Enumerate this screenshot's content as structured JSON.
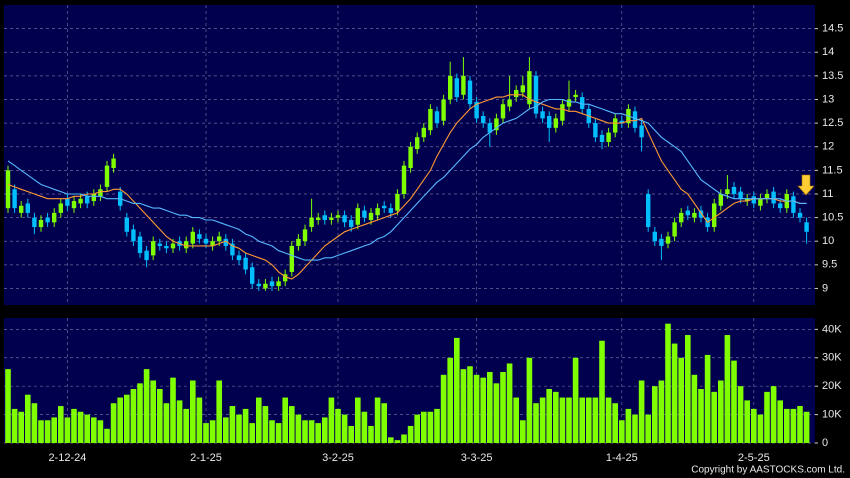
{
  "chart_data": [
    {
      "type": "candlestick",
      "categories": [
        null,
        null,
        null,
        null,
        null,
        null,
        null,
        null,
        null,
        "2-12-24",
        null,
        null,
        null,
        null,
        null,
        null,
        null,
        null,
        null,
        null,
        null,
        null,
        null,
        null,
        null,
        null,
        null,
        null,
        null,
        null,
        "2-1-25",
        null,
        null,
        null,
        null,
        null,
        null,
        null,
        null,
        null,
        null,
        null,
        null,
        null,
        null,
        null,
        null,
        null,
        null,
        null,
        "3-2-25",
        null,
        null,
        null,
        null,
        null,
        null,
        null,
        null,
        null,
        null,
        null,
        null,
        null,
        null,
        null,
        null,
        null,
        null,
        null,
        null,
        "3-3-25",
        null,
        null,
        null,
        null,
        null,
        null,
        null,
        null,
        null,
        null,
        null,
        null,
        null,
        null,
        null,
        null,
        null,
        null,
        null,
        null,
        null,
        "1-4-25",
        null,
        null,
        null,
        null,
        null,
        null,
        null,
        null,
        null,
        null,
        null,
        null,
        null,
        null,
        null,
        null,
        null,
        null,
        null,
        "2-5-25",
        null,
        null,
        null,
        null,
        null,
        null,
        null,
        null
      ],
      "open": [
        10.7,
        11.1,
        10.6,
        10.8,
        10.5,
        10.3,
        10.5,
        10.4,
        10.6,
        10.9,
        10.7,
        10.8,
        10.95,
        10.85,
        10.95,
        11.15,
        11.55,
        11.05,
        10.5,
        10.25,
        10.1,
        9.8,
        9.7,
        9.95,
        9.9,
        9.85,
        10.0,
        9.85,
        9.95,
        10.15,
        10.05,
        9.9,
        10.0,
        10.05,
        9.95,
        9.7,
        9.65,
        9.45,
        9.1,
        9.0,
        9.15,
        9.05,
        9.15,
        9.35,
        9.9,
        10.0,
        10.3,
        10.45,
        10.55,
        10.45,
        10.5,
        10.55,
        10.45,
        10.35,
        10.65,
        10.45,
        10.55,
        10.75,
        10.7,
        10.65,
        11.0,
        11.55,
        11.95,
        12.2,
        12.35,
        12.75,
        12.55,
        13.0,
        13.45,
        13.1,
        13.4,
        12.95,
        12.65,
        12.5,
        12.35,
        12.6,
        12.85,
        13.05,
        13.15,
        12.9,
        13.5,
        12.75,
        12.65,
        12.4,
        12.55,
        12.85,
        13.05,
        13.05,
        12.8,
        12.5,
        12.25,
        12.1,
        12.3,
        12.55,
        12.5,
        12.75,
        12.45,
        11.0,
        10.2,
        10.05,
        9.95,
        10.1,
        10.4,
        10.65,
        10.5,
        10.65,
        10.5,
        10.3,
        10.75,
        11.0,
        11.15,
        11.05,
        10.85,
        10.95,
        10.75,
        10.9,
        11.05,
        10.8,
        10.7,
        10.95,
        10.6,
        10.4
      ],
      "high": [
        11.6,
        11.2,
        10.85,
        10.9,
        10.6,
        10.55,
        10.6,
        10.7,
        10.9,
        11.0,
        10.95,
        11.0,
        11.05,
        11.1,
        11.2,
        11.7,
        11.85,
        11.15,
        10.6,
        10.35,
        10.2,
        9.9,
        10.1,
        10.05,
        10.0,
        10.05,
        10.1,
        10.1,
        10.3,
        10.25,
        10.15,
        10.1,
        10.2,
        10.15,
        10.05,
        9.8,
        9.75,
        9.55,
        9.2,
        9.2,
        9.25,
        9.25,
        9.4,
        10.0,
        10.15,
        10.35,
        10.9,
        10.6,
        10.65,
        10.6,
        10.65,
        10.65,
        10.55,
        10.8,
        10.75,
        10.7,
        10.8,
        10.85,
        10.8,
        11.1,
        11.7,
        12.1,
        12.3,
        12.5,
        12.9,
        12.85,
        13.1,
        13.8,
        13.55,
        13.9,
        13.5,
        13.05,
        12.75,
        12.6,
        12.7,
        13.0,
        13.5,
        13.3,
        13.5,
        13.9,
        13.6,
        12.85,
        12.75,
        12.7,
        13.0,
        13.4,
        13.2,
        13.15,
        12.9,
        12.6,
        12.35,
        12.4,
        12.7,
        12.65,
        12.9,
        12.85,
        12.55,
        11.1,
        10.3,
        10.15,
        10.2,
        10.5,
        10.7,
        10.75,
        10.7,
        10.75,
        10.6,
        10.9,
        11.1,
        11.4,
        11.25,
        11.15,
        11.0,
        11.05,
        11.0,
        11.1,
        11.15,
        10.9,
        11.1,
        11.05,
        10.7,
        10.5
      ],
      "low": [
        10.6,
        10.6,
        10.5,
        10.5,
        10.15,
        10.2,
        10.3,
        10.3,
        10.5,
        10.65,
        10.6,
        10.7,
        10.7,
        10.75,
        10.85,
        11.05,
        11.45,
        10.65,
        10.1,
        9.9,
        9.65,
        9.45,
        9.6,
        9.8,
        9.75,
        9.75,
        9.8,
        9.75,
        9.85,
        9.95,
        9.85,
        9.8,
        9.9,
        9.8,
        9.6,
        9.5,
        9.3,
        9.0,
        8.95,
        8.95,
        8.95,
        8.95,
        9.05,
        9.25,
        9.8,
        9.9,
        10.2,
        10.35,
        10.35,
        10.35,
        10.4,
        10.3,
        10.2,
        10.25,
        10.4,
        10.35,
        10.45,
        10.6,
        10.5,
        10.55,
        10.9,
        11.45,
        11.85,
        12.1,
        12.25,
        12.4,
        12.45,
        12.9,
        12.95,
        13.0,
        12.8,
        12.5,
        12.4,
        12.0,
        12.25,
        12.5,
        12.75,
        12.95,
        13.05,
        12.8,
        12.6,
        12.5,
        12.1,
        12.3,
        12.45,
        12.75,
        12.95,
        12.7,
        12.4,
        12.1,
        11.95,
        12.0,
        12.2,
        12.4,
        12.4,
        12.3,
        11.9,
        10.2,
        9.9,
        9.6,
        9.85,
        10.0,
        10.3,
        10.45,
        10.4,
        10.4,
        10.2,
        10.2,
        10.65,
        10.9,
        10.9,
        10.8,
        10.75,
        10.7,
        10.65,
        10.8,
        10.7,
        10.6,
        10.6,
        10.5,
        10.4,
        9.95
      ],
      "close": [
        11.5,
        10.7,
        10.75,
        10.6,
        10.3,
        10.45,
        10.4,
        10.6,
        10.8,
        10.75,
        10.85,
        10.9,
        10.8,
        11.0,
        11.1,
        11.6,
        11.75,
        10.75,
        10.2,
        10.0,
        9.75,
        9.6,
        10.0,
        9.9,
        9.85,
        9.95,
        9.9,
        10.0,
        10.2,
        10.05,
        9.95,
        10.0,
        10.1,
        9.9,
        9.7,
        9.6,
        9.4,
        9.1,
        9.05,
        9.1,
        9.05,
        9.15,
        9.3,
        9.9,
        10.05,
        10.25,
        10.5,
        10.5,
        10.45,
        10.5,
        10.55,
        10.4,
        10.3,
        10.7,
        10.5,
        10.6,
        10.7,
        10.7,
        10.6,
        11.0,
        11.6,
        12.0,
        12.2,
        12.4,
        12.8,
        12.5,
        13.0,
        13.5,
        13.05,
        13.5,
        12.9,
        12.6,
        12.5,
        12.3,
        12.6,
        12.9,
        13.0,
        13.2,
        13.3,
        13.6,
        12.7,
        12.6,
        12.4,
        12.6,
        12.9,
        13.0,
        13.1,
        12.8,
        12.5,
        12.2,
        12.1,
        12.3,
        12.6,
        12.5,
        12.8,
        12.4,
        12.2,
        10.3,
        10.0,
        9.9,
        10.1,
        10.4,
        10.6,
        10.55,
        10.6,
        10.5,
        10.3,
        10.8,
        11.0,
        11.1,
        11.0,
        10.9,
        10.9,
        10.8,
        10.9,
        11.0,
        10.8,
        10.7,
        11.0,
        10.6,
        10.5,
        10.2
      ],
      "up_color": "#7fff00",
      "down_color": "#00bfff",
      "series": [
        {
          "color": "#ff9933",
          "values": [
            11.2,
            11.15,
            11.1,
            11.05,
            11.0,
            10.95,
            10.9,
            10.9,
            10.9,
            10.9,
            10.95,
            10.95,
            11.0,
            11.0,
            11.05,
            11.05,
            11.1,
            11.1,
            11.0,
            10.85,
            10.7,
            10.55,
            10.4,
            10.25,
            10.1,
            10.0,
            9.95,
            9.9,
            9.9,
            9.9,
            9.9,
            9.9,
            9.95,
            10.0,
            9.9,
            9.85,
            9.75,
            9.7,
            9.65,
            9.6,
            9.5,
            9.35,
            9.25,
            9.2,
            9.3,
            9.45,
            9.6,
            9.75,
            9.9,
            10.0,
            10.1,
            10.2,
            10.25,
            10.3,
            10.35,
            10.4,
            10.45,
            10.5,
            10.55,
            10.6,
            10.75,
            10.9,
            11.1,
            11.3,
            11.5,
            11.8,
            12.05,
            12.3,
            12.5,
            12.65,
            12.8,
            12.9,
            12.95,
            13.0,
            13.05,
            13.05,
            13.1,
            13.1,
            13.1,
            13.0,
            12.95,
            12.9,
            12.85,
            12.8,
            12.8,
            12.75,
            12.75,
            12.7,
            12.65,
            12.6,
            12.55,
            12.5,
            12.5,
            12.5,
            12.55,
            12.55,
            12.6,
            12.3,
            12.0,
            11.7,
            11.5,
            11.3,
            11.1,
            11.0,
            10.8,
            10.6,
            10.4,
            10.5,
            10.6,
            10.7,
            10.8,
            10.85,
            10.85,
            10.9,
            10.9,
            10.9,
            10.9,
            10.85,
            10.85,
            10.85,
            10.8,
            10.8
          ]
        },
        {
          "color": "#55b8ff",
          "values": [
            11.7,
            11.6,
            11.5,
            11.4,
            11.3,
            11.2,
            11.15,
            11.1,
            11.05,
            11.0,
            11.0,
            11.0,
            10.95,
            10.95,
            10.95,
            10.9,
            10.9,
            10.9,
            10.85,
            10.8,
            10.8,
            10.75,
            10.7,
            10.7,
            10.65,
            10.6,
            10.55,
            10.55,
            10.5,
            10.5,
            10.45,
            10.45,
            10.4,
            10.35,
            10.3,
            10.25,
            10.15,
            10.1,
            10.0,
            9.95,
            9.9,
            9.8,
            9.75,
            9.7,
            9.65,
            9.6,
            9.6,
            9.6,
            9.65,
            9.65,
            9.7,
            9.75,
            9.8,
            9.85,
            9.9,
            9.95,
            10.05,
            10.1,
            10.2,
            10.35,
            10.5,
            10.65,
            10.8,
            10.95,
            11.1,
            11.25,
            11.35,
            11.5,
            11.65,
            11.8,
            11.95,
            12.05,
            12.2,
            12.3,
            12.4,
            12.5,
            12.55,
            12.6,
            12.7,
            12.8,
            12.85,
            12.95,
            13.0,
            13.0,
            13.0,
            12.95,
            12.95,
            12.9,
            12.9,
            12.85,
            12.8,
            12.75,
            12.7,
            12.7,
            12.65,
            12.6,
            12.55,
            12.5,
            12.35,
            12.2,
            12.1,
            12.0,
            11.9,
            11.7,
            11.5,
            11.3,
            11.2,
            11.1,
            11.0,
            10.95,
            10.9,
            10.9,
            10.9,
            10.9,
            10.9,
            10.9,
            10.9,
            10.9,
            10.85,
            10.85,
            10.8,
            10.8
          ]
        }
      ],
      "ylim": [
        8.65,
        15.0
      ],
      "yticks": [
        9,
        9.5,
        10,
        10.5,
        11,
        11.5,
        12,
        12.5,
        13,
        13.5,
        14,
        14.5
      ],
      "grid": true
    },
    {
      "type": "bar",
      "values": [
        26,
        12,
        11,
        17,
        14,
        8,
        8,
        9,
        13,
        9,
        12,
        11,
        10,
        9,
        8,
        5,
        14,
        16,
        17,
        19,
        21,
        26,
        22,
        19,
        14,
        23,
        15,
        12,
        22,
        16,
        7,
        8,
        22,
        9,
        13,
        10,
        12,
        7,
        16,
        13,
        8,
        7,
        16,
        13,
        10,
        8,
        8,
        7,
        9,
        16,
        12,
        10,
        6,
        16,
        11,
        6,
        16,
        14,
        2,
        1,
        3,
        6,
        10,
        11,
        11,
        12,
        24,
        30,
        37,
        26,
        27,
        24,
        23,
        25,
        21,
        25,
        28,
        16,
        8,
        30,
        14,
        16,
        19,
        18,
        16,
        16,
        30,
        16,
        16,
        16,
        36,
        16,
        14,
        8,
        12,
        10,
        22,
        10,
        20,
        22,
        42,
        35,
        30,
        38,
        24,
        19,
        31,
        18,
        22,
        38,
        29,
        20,
        15,
        12,
        10,
        18,
        20,
        15,
        12,
        12,
        13,
        11
      ],
      "color": "#80ff00",
      "ylim": [
        0,
        44
      ],
      "yticks": [
        0,
        {
          "value": 10,
          "label": "10K"
        },
        {
          "value": 20,
          "label": "20K"
        },
        {
          "value": 30,
          "label": "30K"
        },
        {
          "value": 40,
          "label": "40K"
        }
      ],
      "grid": true
    }
  ],
  "footer": "Copyright by AASTOCKS.com Ltd."
}
